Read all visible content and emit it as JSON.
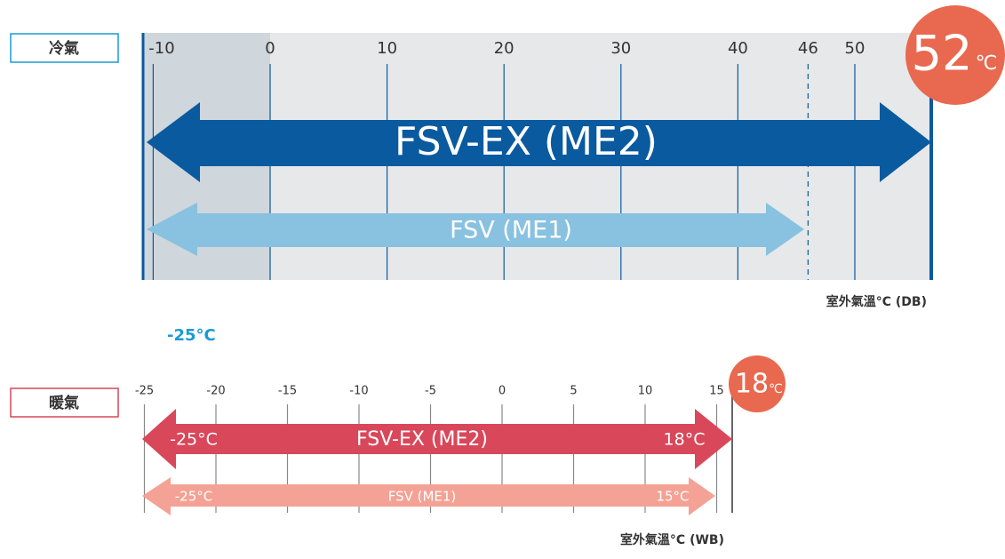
{
  "cooling": {
    "label": "冷氣",
    "ticks": [
      -10,
      0,
      10,
      20,
      30,
      40,
      50
    ],
    "dashed_ticks": [
      46
    ],
    "badge_value": "52",
    "badge_unit": "℃",
    "wide_arrow": "FSV-EX (ME2)",
    "narrow_arrow": "FSV (ME1)",
    "axis_label": "室外氣溫°C (DB)",
    "note": "-25°C"
  },
  "heating": {
    "label": "暖氣",
    "ticks": [
      -25,
      -20,
      -15,
      -10,
      -5,
      0,
      5,
      10,
      15
    ],
    "badge_value": "18",
    "badge_unit": "℃",
    "wide_arrow": {
      "left": "-25°C",
      "name": "FSV-EX (ME2)",
      "right": "18°C"
    },
    "narrow_arrow": {
      "left": "-25°C",
      "name": "FSV (ME1)",
      "right": "15°C"
    },
    "axis_label": "室外氣溫°C (WB)"
  }
}
